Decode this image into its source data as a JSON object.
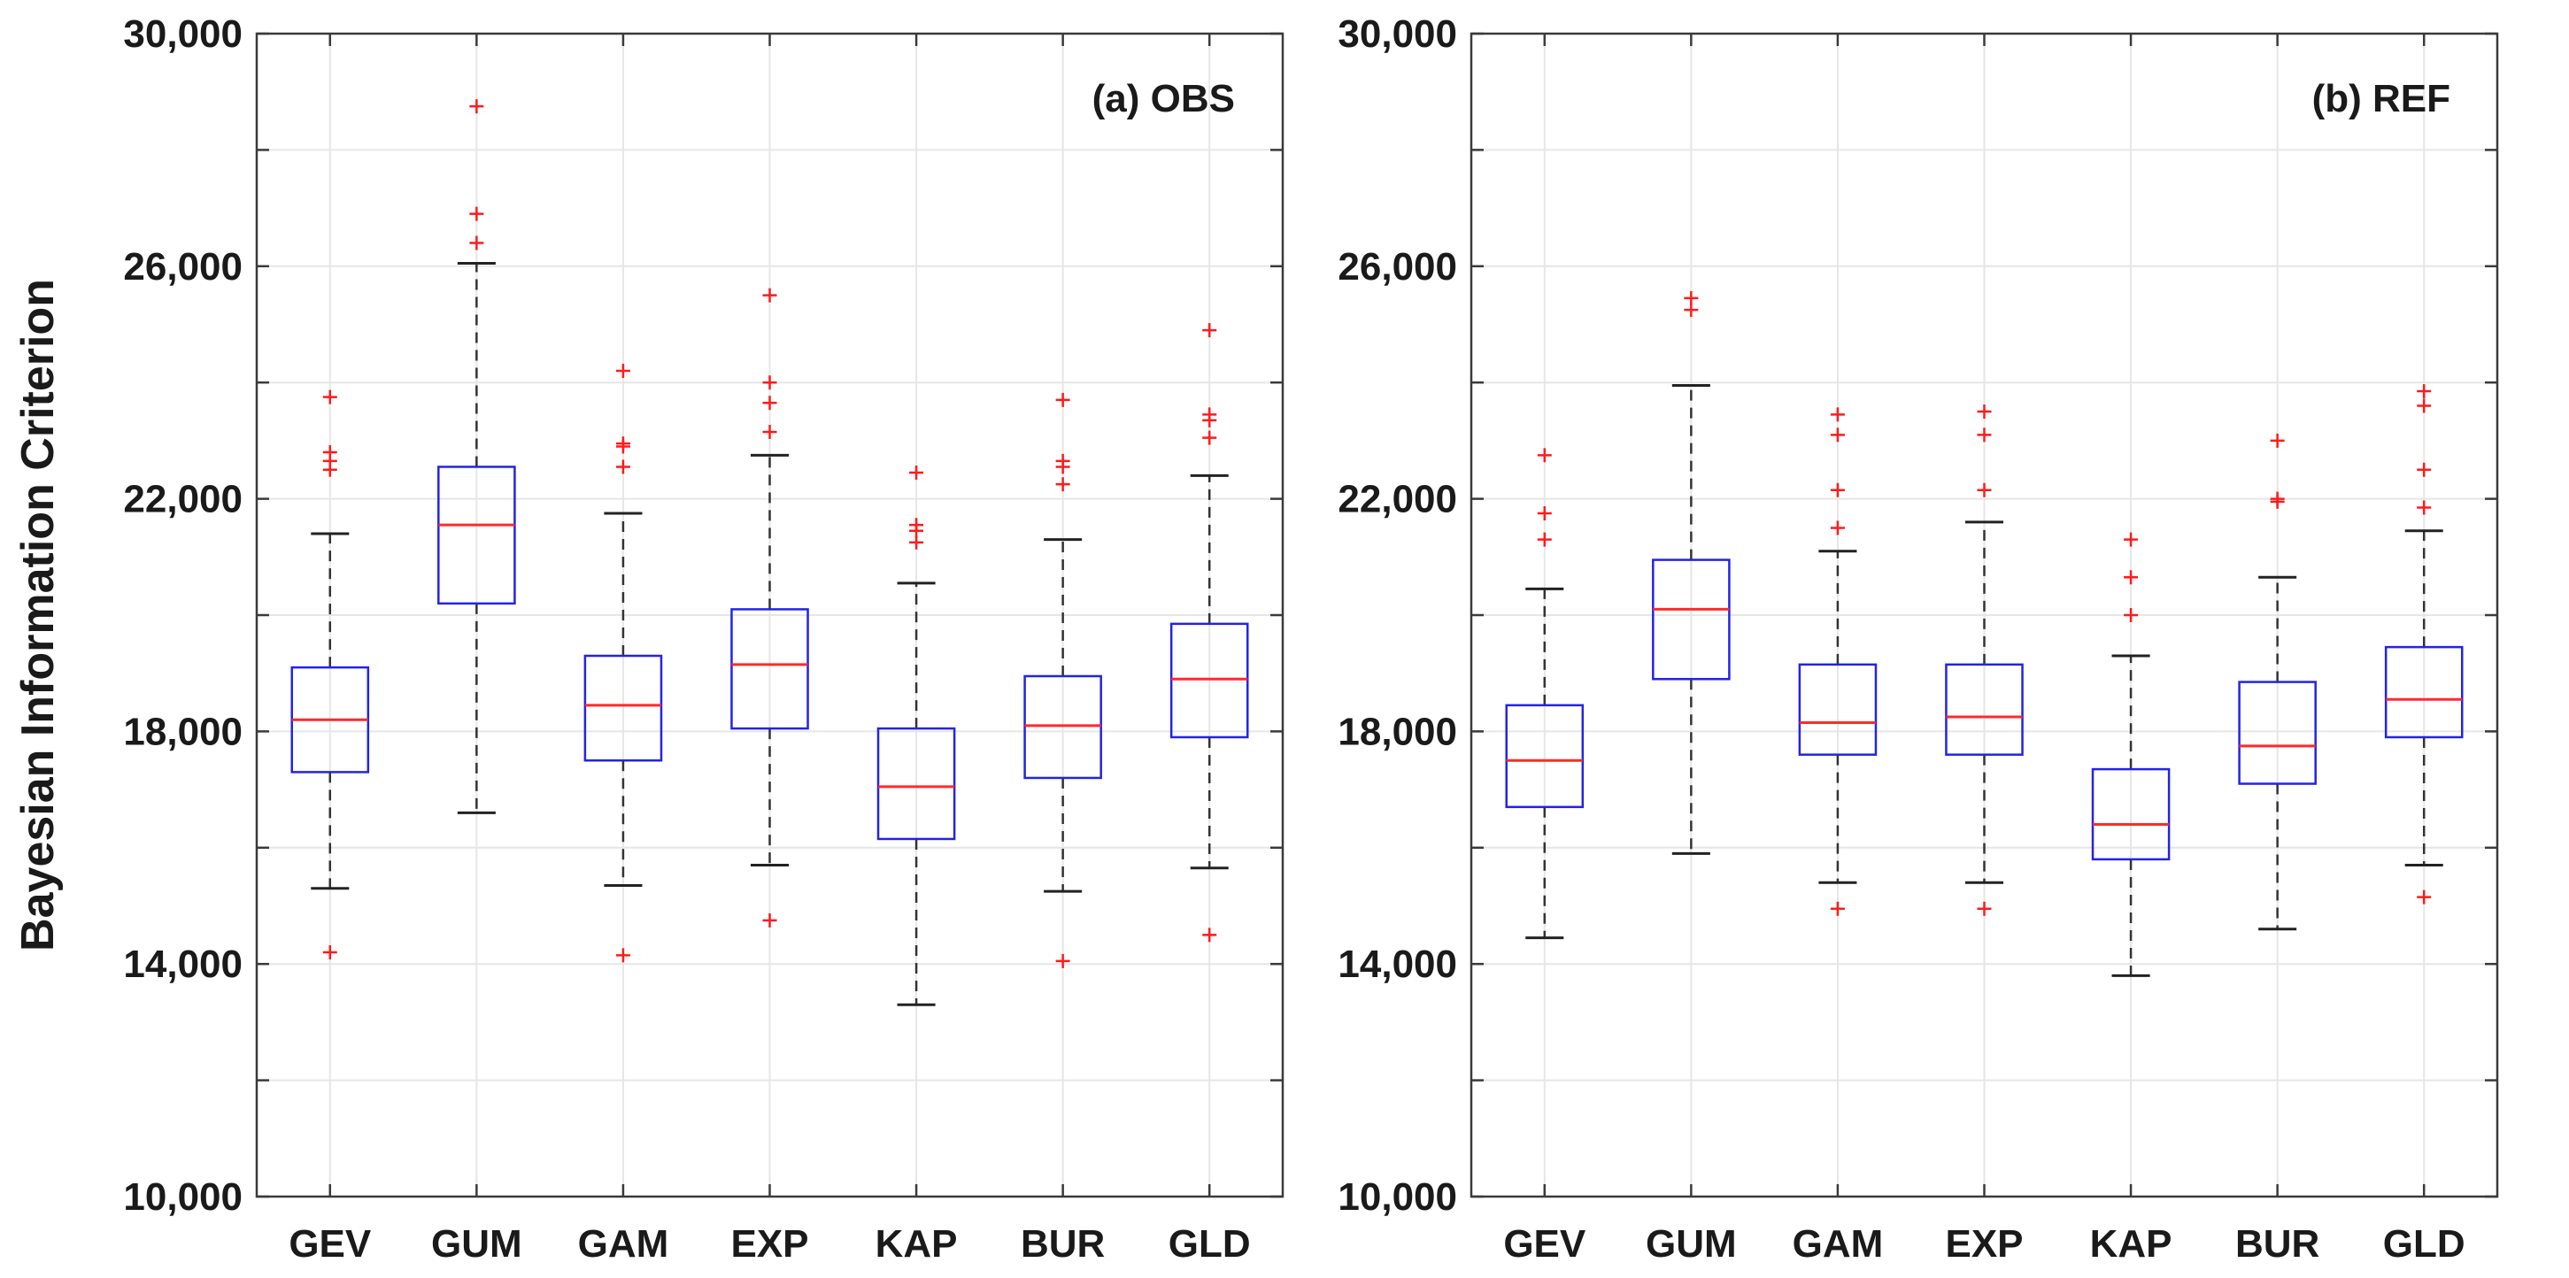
{
  "chart_data": [
    {
      "type": "box",
      "panel_label": "(a) OBS",
      "ylabel": "Bayesian Information Criterion",
      "ylim": [
        10000,
        30000
      ],
      "yticks": [
        10000,
        14000,
        18000,
        22000,
        26000,
        30000
      ],
      "ytick_labels": [
        "10,000",
        "14,000",
        "18,000",
        "22,000",
        "26,000",
        "30,000"
      ],
      "categories": [
        "GEV",
        "GUM",
        "GAM",
        "EXP",
        "KAP",
        "BUR",
        "GLD"
      ],
      "boxes": [
        {
          "name": "GEV",
          "whisker_low": 15300,
          "q1": 17300,
          "median": 18200,
          "q3": 19100,
          "whisker_high": 21400,
          "outliers": [
            14200,
            22500,
            22650,
            22800,
            23750
          ]
        },
        {
          "name": "GUM",
          "whisker_low": 16600,
          "q1": 20200,
          "median": 21550,
          "q3": 22550,
          "whisker_high": 26050,
          "outliers": [
            26400,
            26900,
            28750
          ]
        },
        {
          "name": "GAM",
          "whisker_low": 15350,
          "q1": 17500,
          "median": 18450,
          "q3": 19300,
          "whisker_high": 21750,
          "outliers": [
            14150,
            22550,
            22900,
            22950,
            24200
          ]
        },
        {
          "name": "EXP",
          "whisker_low": 15700,
          "q1": 18050,
          "median": 19150,
          "q3": 20100,
          "whisker_high": 22750,
          "outliers": [
            14750,
            23150,
            23650,
            24000,
            25500
          ]
        },
        {
          "name": "KAP",
          "whisker_low": 13300,
          "q1": 16150,
          "median": 17050,
          "q3": 18050,
          "whisker_high": 20550,
          "outliers": [
            21250,
            21450,
            21550,
            22450
          ]
        },
        {
          "name": "BUR",
          "whisker_low": 15250,
          "q1": 17200,
          "median": 18100,
          "q3": 18950,
          "whisker_high": 21300,
          "outliers": [
            14050,
            22250,
            22550,
            22650,
            23700
          ]
        },
        {
          "name": "GLD",
          "whisker_low": 15650,
          "q1": 17900,
          "median": 18900,
          "q3": 19850,
          "whisker_high": 22400,
          "outliers": [
            14500,
            23050,
            23350,
            23450,
            24900
          ]
        }
      ]
    },
    {
      "type": "box",
      "panel_label": "(b) REF",
      "ylabel": "",
      "ylim": [
        10000,
        30000
      ],
      "yticks": [
        10000,
        14000,
        18000,
        22000,
        26000,
        30000
      ],
      "ytick_labels": [
        "10,000",
        "14,000",
        "18,000",
        "22,000",
        "26,000",
        "30,000"
      ],
      "categories": [
        "GEV",
        "GUM",
        "GAM",
        "EXP",
        "KAP",
        "BUR",
        "GLD"
      ],
      "boxes": [
        {
          "name": "GEV",
          "whisker_low": 14450,
          "q1": 16700,
          "median": 17500,
          "q3": 18450,
          "whisker_high": 20450,
          "outliers": [
            21300,
            21750,
            22750
          ]
        },
        {
          "name": "GUM",
          "whisker_low": 15900,
          "q1": 18900,
          "median": 20100,
          "q3": 20950,
          "whisker_high": 23950,
          "outliers": [
            25250,
            25450
          ]
        },
        {
          "name": "GAM",
          "whisker_low": 15400,
          "q1": 17600,
          "median": 18150,
          "q3": 19150,
          "whisker_high": 21100,
          "outliers": [
            14950,
            21500,
            22150,
            23100,
            23450
          ]
        },
        {
          "name": "EXP",
          "whisker_low": 15400,
          "q1": 17600,
          "median": 18250,
          "q3": 19150,
          "whisker_high": 21600,
          "outliers": [
            14950,
            22150,
            23100,
            23500
          ]
        },
        {
          "name": "KAP",
          "whisker_low": 13800,
          "q1": 15800,
          "median": 16400,
          "q3": 17350,
          "whisker_high": 19300,
          "outliers": [
            20000,
            20650,
            21300
          ]
        },
        {
          "name": "BUR",
          "whisker_low": 14600,
          "q1": 17100,
          "median": 17750,
          "q3": 18850,
          "whisker_high": 20650,
          "outliers": [
            21950,
            22000,
            23000
          ]
        },
        {
          "name": "GLD",
          "whisker_low": 15700,
          "q1": 17900,
          "median": 18550,
          "q3": 19450,
          "whisker_high": 21450,
          "outliers": [
            15150,
            21850,
            22500,
            23600,
            23850
          ]
        }
      ]
    }
  ]
}
